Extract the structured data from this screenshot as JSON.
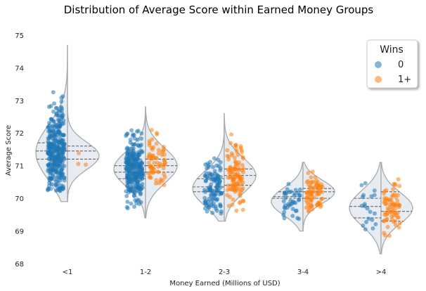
{
  "chart_data": {
    "type": "scatter",
    "subtype": "split-violin with strip points",
    "title": "Distribution of Average Score within Earned Money Groups",
    "xlabel": "Money Earned (Millions of USD)",
    "ylabel": "Average Score",
    "categories": [
      "<1",
      "1-2",
      "2-3",
      "3-4",
      ">4"
    ],
    "ylim": [
      68,
      75.3
    ],
    "yticks": [
      68,
      69,
      70,
      71,
      72,
      73,
      74,
      75
    ],
    "grid": false,
    "legend": {
      "title": "Wins",
      "position": "top-right",
      "entries": [
        "0",
        "1+"
      ]
    },
    "series": [
      {
        "name": "0",
        "color": "#1f77b4",
        "approx_count": [
          320,
          280,
          110,
          40,
          20
        ],
        "center": [
          71.4,
          70.9,
          70.3,
          69.9,
          69.7
        ],
        "spread": [
          0.7,
          0.45,
          0.45,
          0.35,
          0.45
        ],
        "range": [
          [
            70.2,
            74.4
          ],
          [
            69.5,
            72.1
          ],
          [
            69.5,
            71.3
          ],
          [
            69.3,
            70.6
          ],
          [
            68.9,
            70.6
          ]
        ]
      },
      {
        "name": "1+",
        "color": "#ff7f0e",
        "approx_count": [
          3,
          70,
          110,
          75,
          70
        ],
        "center": [
          71.3,
          71.0,
          70.7,
          70.2,
          69.7
        ],
        "spread": [
          0.35,
          0.45,
          0.45,
          0.3,
          0.4
        ],
        "range": [
          [
            70.9,
            71.6
          ],
          [
            70.4,
            72.4
          ],
          [
            69.6,
            72.3
          ],
          [
            69.4,
            70.9
          ],
          [
            68.7,
            70.6
          ]
        ]
      }
    ],
    "violin": {
      "color": "#e6ecf2",
      "edge_color": "#aaaaaa",
      "quartiles_left": [
        [
          71.2,
          71.45,
          71.7
        ],
        [
          70.6,
          70.8,
          71.0
        ],
        [
          70.2,
          70.35,
          70.6
        ],
        [
          70.0,
          70.05,
          70.2
        ],
        [
          69.4,
          69.75,
          70.0
        ]
      ],
      "quartiles_right": [
        [
          71.2,
          71.45,
          71.6
        ],
        [
          70.8,
          71.0,
          71.2
        ],
        [
          70.4,
          70.7,
          70.9
        ],
        [
          70.0,
          70.2,
          70.3
        ],
        [
          69.3,
          69.6,
          70.2
        ]
      ],
      "extent": [
        [
          69.9,
          74.7
        ],
        [
          69.4,
          72.8
        ],
        [
          69.3,
          72.6
        ],
        [
          69.0,
          71.1
        ],
        [
          68.3,
          71.1
        ]
      ]
    }
  }
}
